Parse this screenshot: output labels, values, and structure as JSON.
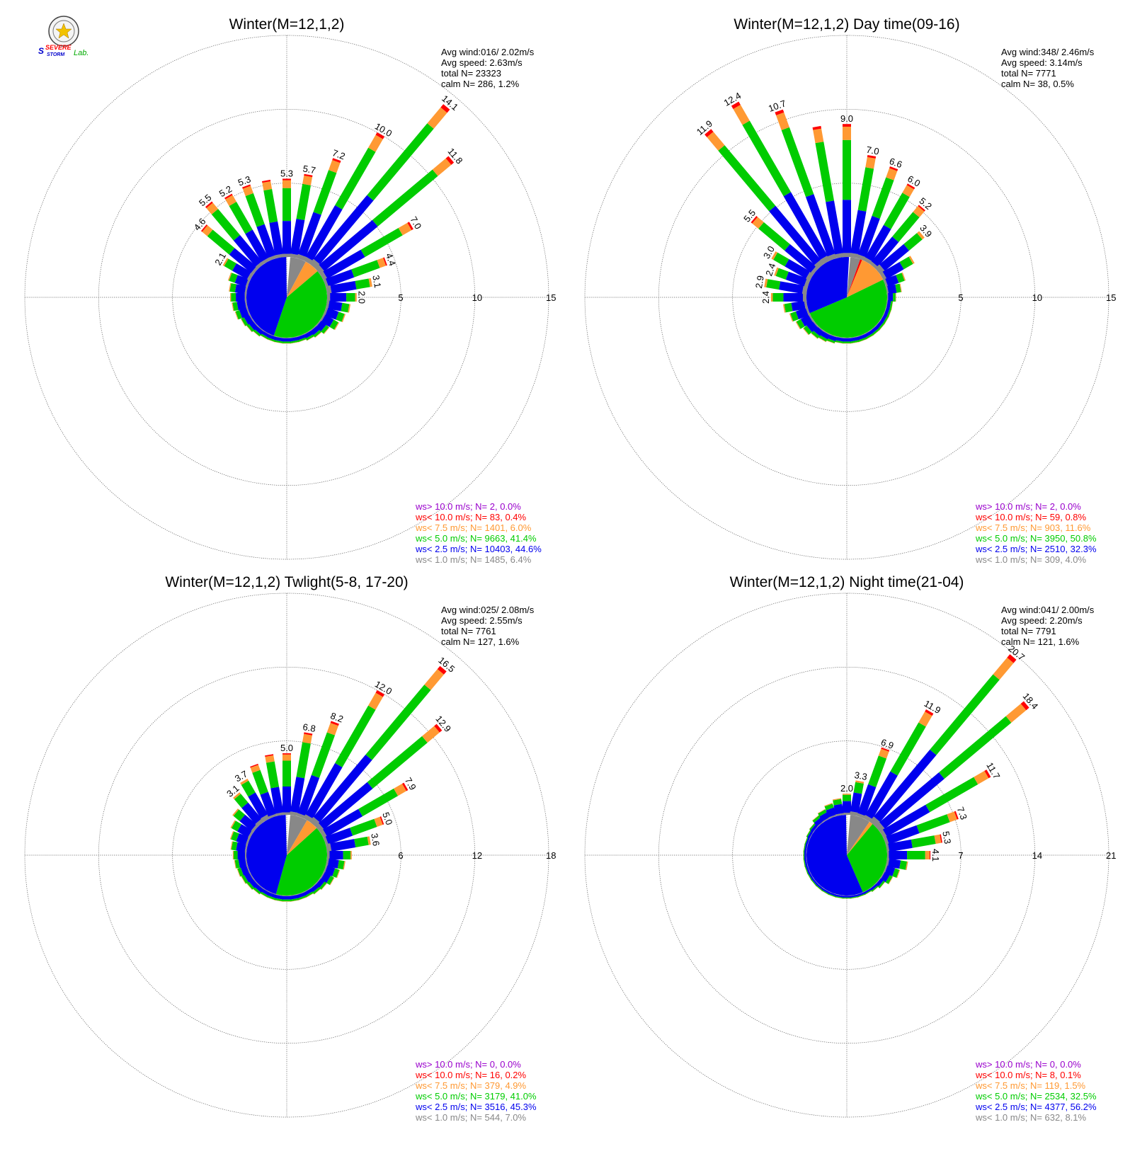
{
  "logo": {
    "text_main": "SEVERE",
    "text_sub": "STORM",
    "text_lab": "Lab."
  },
  "colors": {
    "ws_gt10": "#9900cc",
    "ws_lt10": "#ff0000",
    "ws_lt75": "#ff9933",
    "ws_lt5": "#00cc00",
    "ws_lt25": "#0000ee",
    "ws_lt1": "#888888",
    "grid": "#555555"
  },
  "chart_data": [
    {
      "type": "windrose",
      "title": "Winter(M=12,1,2)",
      "stats": [
        "Avg wind:016/ 2.02m/s",
        "Avg speed: 2.63m/s",
        "total N=       23323",
        "calm N=    286,   1.2%"
      ],
      "ring_labels": [
        "5",
        "10",
        "15"
      ],
      "rmax": 15,
      "legend": [
        "ws> 10.0 m/s; N=     2,  0.0%",
        "ws< 10.0 m/s; N=    83,  0.4%",
        "ws<  7.5 m/s; N=  1401,  6.0%",
        "ws<  5.0 m/s; N=  9663, 41.4%",
        "ws<  2.5 m/s; N= 10403, 44.6%",
        "ws<  1.0 m/s; N=  1485,  6.4%"
      ],
      "pie": [
        {
          "cls": "ws_lt1",
          "pct": 6.4
        },
        {
          "cls": "ws_lt75",
          "pct": 6.0
        },
        {
          "cls": "ws_lt5",
          "pct": 41.4
        },
        {
          "cls": "ws_lt25",
          "pct": 44.6
        }
      ],
      "bars": [
        {
          "dir": 0,
          "total": 5.3,
          "label": "5.3"
        },
        {
          "dir": 10,
          "total": 5.7,
          "label": "5.7"
        },
        {
          "dir": 20,
          "total": 7.2,
          "label": "7.2"
        },
        {
          "dir": 30,
          "total": 10.0,
          "label": "10.0"
        },
        {
          "dir": 40,
          "total": 14.1,
          "label": "14.1"
        },
        {
          "dir": 50,
          "total": 11.8,
          "label": "11.8"
        },
        {
          "dir": 60,
          "total": 7.0,
          "label": "7.0"
        },
        {
          "dir": 70,
          "total": 4.4,
          "label": "4.4"
        },
        {
          "dir": 80,
          "total": 3.1,
          "label": "3.1"
        },
        {
          "dir": 90,
          "total": 2.0,
          "label": "2.0"
        },
        {
          "dir": 100,
          "total": 1.6,
          "label": ""
        },
        {
          "dir": 110,
          "total": 1.4,
          "label": ""
        },
        {
          "dir": 120,
          "total": 1.2,
          "label": ""
        },
        {
          "dir": 130,
          "total": 0.8,
          "label": ""
        },
        {
          "dir": 140,
          "total": 0.6,
          "label": ""
        },
        {
          "dir": 150,
          "total": 0.5,
          "label": ""
        },
        {
          "dir": 160,
          "total": 0.4,
          "label": ""
        },
        {
          "dir": 170,
          "total": 0.4,
          "label": ""
        },
        {
          "dir": 180,
          "total": 0.4,
          "label": ""
        },
        {
          "dir": 190,
          "total": 0.4,
          "label": ""
        },
        {
          "dir": 200,
          "total": 0.4,
          "label": ""
        },
        {
          "dir": 210,
          "total": 0.4,
          "label": ""
        },
        {
          "dir": 220,
          "total": 0.5,
          "label": ""
        },
        {
          "dir": 230,
          "total": 0.6,
          "label": ""
        },
        {
          "dir": 240,
          "total": 0.7,
          "label": ""
        },
        {
          "dir": 250,
          "total": 0.9,
          "label": ""
        },
        {
          "dir": 260,
          "total": 1.0,
          "label": ""
        },
        {
          "dir": 270,
          "total": 1.1,
          "label": ""
        },
        {
          "dir": 280,
          "total": 1.2,
          "label": ""
        },
        {
          "dir": 290,
          "total": 1.4,
          "label": ""
        },
        {
          "dir": 300,
          "total": 2.1,
          "label": "2.1"
        },
        {
          "dir": 310,
          "total": 4.6,
          "label": "4.6"
        },
        {
          "dir": 320,
          "total": 5.5,
          "label": "5.5"
        },
        {
          "dir": 330,
          "total": 5.2,
          "label": "5.2"
        },
        {
          "dir": 340,
          "total": 5.3,
          "label": "5.3"
        },
        {
          "dir": 350,
          "total": 5.3,
          "label": ""
        }
      ]
    },
    {
      "type": "windrose",
      "title": "Winter(M=12,1,2) Day time(09-16)",
      "stats": [
        "Avg wind:348/ 2.46m/s",
        "Avg speed: 3.14m/s",
        "total N=        7771",
        "calm N=     38,   0.5%"
      ],
      "ring_labels": [
        "5",
        "10",
        "15"
      ],
      "rmax": 15,
      "legend": [
        "ws> 10.0 m/s; N=     2,  0.0%",
        "ws< 10.0 m/s; N=    59,  0.8%",
        "ws<  7.5 m/s; N=   903, 11.6%",
        "ws<  5.0 m/s; N=  3950, 50.8%",
        "ws<  2.5 m/s; N=  2510, 32.3%",
        "ws<  1.0 m/s; N=   309,  4.0%"
      ],
      "pie": [
        {
          "cls": "ws_lt1",
          "pct": 4.0
        },
        {
          "cls": "ws_lt10",
          "pct": 0.8
        },
        {
          "cls": "ws_lt75",
          "pct": 11.6
        },
        {
          "cls": "ws_lt5",
          "pct": 50.8
        },
        {
          "cls": "ws_lt25",
          "pct": 32.3
        }
      ],
      "bars": [
        {
          "dir": 0,
          "total": 9.0,
          "label": "9.0"
        },
        {
          "dir": 10,
          "total": 7.0,
          "label": "7.0"
        },
        {
          "dir": 20,
          "total": 6.6,
          "label": "6.6"
        },
        {
          "dir": 30,
          "total": 6.0,
          "label": "6.0"
        },
        {
          "dir": 40,
          "total": 5.2,
          "label": "5.2"
        },
        {
          "dir": 50,
          "total": 3.9,
          "label": "3.9"
        },
        {
          "dir": 60,
          "total": 2.4,
          "label": ""
        },
        {
          "dir": 70,
          "total": 1.4,
          "label": ""
        },
        {
          "dir": 80,
          "total": 1.0,
          "label": ""
        },
        {
          "dir": 90,
          "total": 0.6,
          "label": ""
        },
        {
          "dir": 100,
          "total": 0.4,
          "label": ""
        },
        {
          "dir": 110,
          "total": 0.4,
          "label": ""
        },
        {
          "dir": 120,
          "total": 0.4,
          "label": ""
        },
        {
          "dir": 130,
          "total": 0.4,
          "label": ""
        },
        {
          "dir": 140,
          "total": 0.4,
          "label": ""
        },
        {
          "dir": 150,
          "total": 0.4,
          "label": ""
        },
        {
          "dir": 160,
          "total": 0.4,
          "label": ""
        },
        {
          "dir": 170,
          "total": 0.4,
          "label": ""
        },
        {
          "dir": 180,
          "total": 0.4,
          "label": ""
        },
        {
          "dir": 190,
          "total": 0.4,
          "label": ""
        },
        {
          "dir": 200,
          "total": 0.5,
          "label": ""
        },
        {
          "dir": 210,
          "total": 0.6,
          "label": ""
        },
        {
          "dir": 220,
          "total": 0.7,
          "label": ""
        },
        {
          "dir": 230,
          "total": 0.9,
          "label": ""
        },
        {
          "dir": 240,
          "total": 1.1,
          "label": ""
        },
        {
          "dir": 250,
          "total": 1.3,
          "label": ""
        },
        {
          "dir": 260,
          "total": 1.6,
          "label": ""
        },
        {
          "dir": 270,
          "total": 2.4,
          "label": "2.4"
        },
        {
          "dir": 280,
          "total": 2.9,
          "label": "2.9"
        },
        {
          "dir": 290,
          "total": 2.4,
          "label": "2.4"
        },
        {
          "dir": 300,
          "total": 3.0,
          "label": "3.0"
        },
        {
          "dir": 310,
          "total": 5.5,
          "label": "5.5"
        },
        {
          "dir": 320,
          "total": 11.9,
          "label": "11.9"
        },
        {
          "dir": 330,
          "total": 12.4,
          "label": "12.4"
        },
        {
          "dir": 340,
          "total": 10.7,
          "label": "10.7"
        },
        {
          "dir": 350,
          "total": 9.0,
          "label": ""
        }
      ]
    },
    {
      "type": "windrose",
      "title": "Winter(M=12,1,2) Twlight(5-8, 17-20)",
      "stats": [
        "Avg wind:025/ 2.08m/s",
        "Avg speed: 2.55m/s",
        "total N=        7761",
        "calm N=    127,   1.6%"
      ],
      "ring_labels": [
        "6",
        "12",
        "18"
      ],
      "rmax": 18,
      "legend": [
        "ws> 10.0 m/s; N=     0,  0.0%",
        "ws< 10.0 m/s; N=    16,  0.2%",
        "ws<  7.5 m/s; N=   379,  4.9%",
        "ws<  5.0 m/s; N=  3179, 41.0%",
        "ws<  2.5 m/s; N=  3516, 45.3%",
        "ws<  1.0 m/s; N=   544,  7.0%"
      ],
      "pie": [
        {
          "cls": "ws_lt1",
          "pct": 7.0
        },
        {
          "cls": "ws_lt75",
          "pct": 4.9
        },
        {
          "cls": "ws_lt5",
          "pct": 41.0
        },
        {
          "cls": "ws_lt25",
          "pct": 45.3
        }
      ],
      "bars": [
        {
          "dir": 0,
          "total": 5.0,
          "label": "5.0"
        },
        {
          "dir": 10,
          "total": 6.8,
          "label": "6.8"
        },
        {
          "dir": 20,
          "total": 8.2,
          "label": "8.2"
        },
        {
          "dir": 30,
          "total": 12.0,
          "label": "12.0"
        },
        {
          "dir": 40,
          "total": 16.5,
          "label": "16.5"
        },
        {
          "dir": 50,
          "total": 12.9,
          "label": "12.9"
        },
        {
          "dir": 60,
          "total": 7.9,
          "label": "7.9"
        },
        {
          "dir": 70,
          "total": 5.0,
          "label": "5.0"
        },
        {
          "dir": 80,
          "total": 3.6,
          "label": "3.6"
        },
        {
          "dir": 90,
          "total": 2.0,
          "label": ""
        },
        {
          "dir": 100,
          "total": 1.5,
          "label": ""
        },
        {
          "dir": 110,
          "total": 1.2,
          "label": ""
        },
        {
          "dir": 120,
          "total": 1.0,
          "label": ""
        },
        {
          "dir": 130,
          "total": 0.7,
          "label": ""
        },
        {
          "dir": 140,
          "total": 0.6,
          "label": ""
        },
        {
          "dir": 150,
          "total": 0.5,
          "label": ""
        },
        {
          "dir": 160,
          "total": 0.5,
          "label": ""
        },
        {
          "dir": 170,
          "total": 0.5,
          "label": ""
        },
        {
          "dir": 180,
          "total": 0.5,
          "label": ""
        },
        {
          "dir": 190,
          "total": 0.5,
          "label": ""
        },
        {
          "dir": 200,
          "total": 0.5,
          "label": ""
        },
        {
          "dir": 210,
          "total": 0.5,
          "label": ""
        },
        {
          "dir": 220,
          "total": 0.6,
          "label": ""
        },
        {
          "dir": 230,
          "total": 0.7,
          "label": ""
        },
        {
          "dir": 240,
          "total": 0.8,
          "label": ""
        },
        {
          "dir": 250,
          "total": 0.9,
          "label": ""
        },
        {
          "dir": 260,
          "total": 1.0,
          "label": ""
        },
        {
          "dir": 270,
          "total": 1.1,
          "label": ""
        },
        {
          "dir": 280,
          "total": 1.3,
          "label": ""
        },
        {
          "dir": 290,
          "total": 1.5,
          "label": ""
        },
        {
          "dir": 300,
          "total": 1.8,
          "label": ""
        },
        {
          "dir": 310,
          "total": 2.2,
          "label": ""
        },
        {
          "dir": 320,
          "total": 3.1,
          "label": "3.1"
        },
        {
          "dir": 330,
          "total": 3.7,
          "label": "3.7"
        },
        {
          "dir": 340,
          "total": 4.5,
          "label": ""
        },
        {
          "dir": 350,
          "total": 5.0,
          "label": ""
        }
      ]
    },
    {
      "type": "windrose",
      "title": "Winter(M=12,1,2) Night time(21-04)",
      "stats": [
        "Avg wind:041/ 2.00m/s",
        "Avg speed: 2.20m/s",
        "total N=        7791",
        "calm N=    121,   1.6%"
      ],
      "ring_labels": [
        "7",
        "14",
        "21"
      ],
      "rmax": 21,
      "legend": [
        "ws> 10.0 m/s; N=     0,  0.0%",
        "ws< 10.0 m/s; N=     8,  0.1%",
        "ws<  7.5 m/s; N=   119,  1.5%",
        "ws<  5.0 m/s; N=  2534, 32.5%",
        "ws<  2.5 m/s; N=  4377, 56.2%",
        "ws<  1.0 m/s; N=   632,  8.1%"
      ],
      "pie": [
        {
          "cls": "ws_lt1",
          "pct": 8.1
        },
        {
          "cls": "ws_lt75",
          "pct": 1.5
        },
        {
          "cls": "ws_lt5",
          "pct": 32.5
        },
        {
          "cls": "ws_lt25",
          "pct": 56.2
        }
      ],
      "bars": [
        {
          "dir": 0,
          "total": 2.0,
          "label": "2.0"
        },
        {
          "dir": 10,
          "total": 3.3,
          "label": "3.3"
        },
        {
          "dir": 20,
          "total": 6.9,
          "label": "6.9"
        },
        {
          "dir": 30,
          "total": 11.9,
          "label": "11.9"
        },
        {
          "dir": 40,
          "total": 20.7,
          "label": "20.7"
        },
        {
          "dir": 50,
          "total": 18.4,
          "label": "18.4"
        },
        {
          "dir": 60,
          "total": 11.7,
          "label": "11.7"
        },
        {
          "dir": 70,
          "total": 7.3,
          "label": "7.3"
        },
        {
          "dir": 80,
          "total": 5.3,
          "label": "5.3"
        },
        {
          "dir": 90,
          "total": 4.1,
          "label": "4.1"
        },
        {
          "dir": 100,
          "total": 2.0,
          "label": ""
        },
        {
          "dir": 110,
          "total": 1.4,
          "label": ""
        },
        {
          "dir": 120,
          "total": 1.0,
          "label": ""
        },
        {
          "dir": 130,
          "total": 0.6,
          "label": ""
        },
        {
          "dir": 140,
          "total": 0.4,
          "label": ""
        },
        {
          "dir": 150,
          "total": 0.3,
          "label": ""
        },
        {
          "dir": 160,
          "total": 0.3,
          "label": ""
        },
        {
          "dir": 170,
          "total": 0.3,
          "label": ""
        },
        {
          "dir": 180,
          "total": 0.3,
          "label": ""
        },
        {
          "dir": 190,
          "total": 0.3,
          "label": ""
        },
        {
          "dir": 200,
          "total": 0.3,
          "label": ""
        },
        {
          "dir": 210,
          "total": 0.3,
          "label": ""
        },
        {
          "dir": 220,
          "total": 0.3,
          "label": ""
        },
        {
          "dir": 230,
          "total": 0.3,
          "label": ""
        },
        {
          "dir": 240,
          "total": 0.3,
          "label": ""
        },
        {
          "dir": 250,
          "total": 0.3,
          "label": ""
        },
        {
          "dir": 260,
          "total": 0.3,
          "label": ""
        },
        {
          "dir": 270,
          "total": 0.3,
          "label": ""
        },
        {
          "dir": 280,
          "total": 0.3,
          "label": ""
        },
        {
          "dir": 290,
          "total": 0.3,
          "label": ""
        },
        {
          "dir": 300,
          "total": 0.4,
          "label": ""
        },
        {
          "dir": 310,
          "total": 0.5,
          "label": ""
        },
        {
          "dir": 320,
          "total": 0.8,
          "label": ""
        },
        {
          "dir": 330,
          "total": 1.0,
          "label": ""
        },
        {
          "dir": 340,
          "total": 1.3,
          "label": ""
        },
        {
          "dir": 350,
          "total": 1.6,
          "label": ""
        }
      ]
    }
  ]
}
